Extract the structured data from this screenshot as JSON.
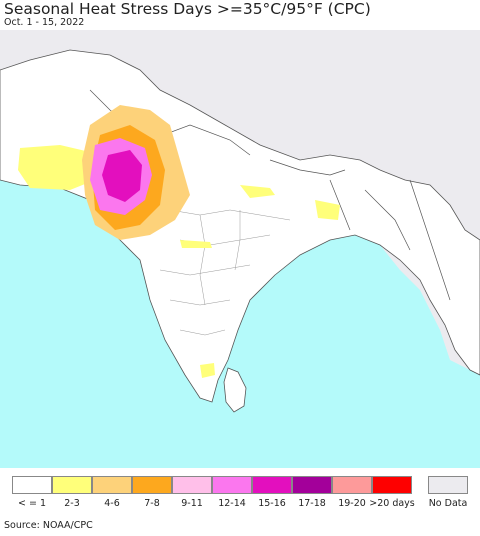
{
  "title": "Seasonal Heat Stress Days >=35°C/95°F (CPC)",
  "subtitle": "Oct. 1 - 15, 2022",
  "source": "Source: NOAA/CPC",
  "colors": {
    "ocean": "#b4fafa",
    "land": "#ffffff",
    "outside": "#ecebef",
    "border": "#555555"
  },
  "legend": [
    {
      "label": "< = 1",
      "color": "#ffffff"
    },
    {
      "label": "2-3",
      "color": "#ffff7a"
    },
    {
      "label": "4-6",
      "color": "#fdd27a"
    },
    {
      "label": "7-8",
      "color": "#fda81e"
    },
    {
      "label": "9-11",
      "color": "#ffbfe9"
    },
    {
      "label": "12-14",
      "color": "#fb77ee"
    },
    {
      "label": "15-16",
      "color": "#e30fbe"
    },
    {
      "label": "17-18",
      "color": "#a3009a"
    },
    {
      "label": "19-20",
      "color": "#fd9a9a"
    },
    {
      "label": ">20 days",
      "color": "#fe0000"
    }
  ],
  "no_data": {
    "label": "No Data",
    "color": "#ecebef"
  }
}
